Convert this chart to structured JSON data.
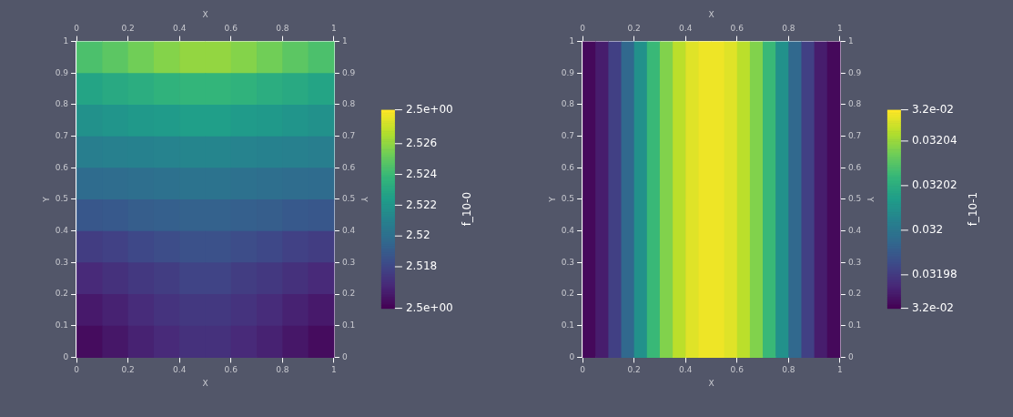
{
  "chart_data": [
    {
      "type": "heatmap",
      "xlabel": "X",
      "x2label": "X",
      "ylabel": "Y",
      "y2label": "Y",
      "clabel": "f_10-0",
      "xlim": [
        0,
        1
      ],
      "xticks": [
        0,
        0.2,
        0.4,
        0.6,
        0.8,
        1
      ],
      "x2lim": [
        0,
        1
      ],
      "x2ticks": [
        0,
        0.2,
        0.4,
        0.6,
        0.8,
        1
      ],
      "ylim": [
        0,
        1
      ],
      "yticks": [
        0,
        0.1,
        0.2,
        0.3,
        0.4,
        0.5,
        0.6,
        0.7,
        0.8,
        0.9,
        1
      ],
      "y2lim": [
        0,
        1
      ],
      "y2ticks": [
        0,
        0.1,
        0.2,
        0.3,
        0.4,
        0.5,
        0.6,
        0.7,
        0.8,
        0.9,
        1
      ],
      "x": [
        0.05,
        0.15,
        0.25,
        0.35,
        0.45,
        0.55,
        0.65,
        0.75,
        0.85,
        0.95
      ],
      "y": [
        0.95,
        0.85,
        0.75,
        0.65,
        0.55,
        0.45,
        0.35,
        0.25,
        0.15,
        0.05
      ],
      "cells": [
        [
          2.5245,
          2.5249,
          2.5254,
          2.5258,
          2.5261,
          2.5261,
          2.5258,
          2.5254,
          2.5249,
          2.5245
        ],
        [
          2.5228,
          2.5231,
          2.5233,
          2.5236,
          2.5238,
          2.5238,
          2.5236,
          2.5233,
          2.5231,
          2.5228
        ],
        [
          2.5218,
          2.522,
          2.5222,
          2.5223,
          2.5225,
          2.5225,
          2.5223,
          2.5222,
          2.522,
          2.5218
        ],
        [
          2.5208,
          2.5209,
          2.521,
          2.5211,
          2.5212,
          2.5212,
          2.5211,
          2.521,
          2.5209,
          2.5208
        ],
        [
          2.5198,
          2.5199,
          2.52,
          2.5201,
          2.5202,
          2.5202,
          2.5201,
          2.52,
          2.5199,
          2.5198
        ],
        [
          2.5188,
          2.5189,
          2.5191,
          2.5192,
          2.5193,
          2.5193,
          2.5192,
          2.5191,
          2.5189,
          2.5188
        ],
        [
          2.5176,
          2.5178,
          2.5181,
          2.5183,
          2.5185,
          2.5185,
          2.5183,
          2.5181,
          2.5178,
          2.5176
        ],
        [
          2.5168,
          2.5171,
          2.5174,
          2.5176,
          2.5179,
          2.5179,
          2.5176,
          2.5174,
          2.5171,
          2.5168
        ],
        [
          2.5162,
          2.5165,
          2.5169,
          2.5172,
          2.5174,
          2.5174,
          2.5172,
          2.5169,
          2.5165,
          2.5162
        ],
        [
          2.5157,
          2.5161,
          2.5165,
          2.5168,
          2.5171,
          2.5171,
          2.5168,
          2.5165,
          2.5161,
          2.5157
        ]
      ],
      "clim": [
        2.5153,
        2.5282
      ],
      "cticks": [
        {
          "value": 2.5153,
          "label": "2.5e+00"
        },
        2.518,
        2.52,
        2.522,
        2.524,
        2.526,
        {
          "value": 2.5282,
          "label": "2.5e+00"
        }
      ]
    },
    {
      "type": "heatmap",
      "xlabel": "X",
      "x2label": "X",
      "ylabel": "Y",
      "y2label": "Y",
      "clabel": "f_10-1",
      "xlim": [
        0,
        1
      ],
      "xticks": [
        0,
        0.2,
        0.4,
        0.6,
        0.8,
        1
      ],
      "x2lim": [
        0,
        1
      ],
      "x2ticks": [
        0,
        0.2,
        0.4,
        0.6,
        0.8,
        1
      ],
      "ylim": [
        0,
        1
      ],
      "yticks": [
        0,
        0.1,
        0.2,
        0.3,
        0.4,
        0.5,
        0.6,
        0.7,
        0.8,
        0.9,
        1
      ],
      "y2lim": [
        0,
        1
      ],
      "y2ticks": [
        0,
        0.1,
        0.2,
        0.3,
        0.4,
        0.5,
        0.6,
        0.7,
        0.8,
        0.9,
        1
      ],
      "x": [
        0.025,
        0.075,
        0.125,
        0.175,
        0.225,
        0.275,
        0.325,
        0.375,
        0.425,
        0.475,
        0.525,
        0.575,
        0.625,
        0.675,
        0.725,
        0.775,
        0.825,
        0.875,
        0.925,
        0.975
      ],
      "y": [
        0.75,
        0.25
      ],
      "cells": [
        [
          0.031967,
          0.031972,
          0.031982,
          0.031995,
          0.03201,
          0.032025,
          0.032037,
          0.032045,
          0.03205,
          0.032052,
          0.032052,
          0.03205,
          0.032045,
          0.032037,
          0.032025,
          0.03201,
          0.031995,
          0.031982,
          0.031972,
          0.031967
        ],
        [
          0.031967,
          0.031972,
          0.031982,
          0.031995,
          0.03201,
          0.032025,
          0.032037,
          0.032045,
          0.03205,
          0.032052,
          0.032052,
          0.03205,
          0.032045,
          0.032037,
          0.032025,
          0.03201,
          0.031995,
          0.031982,
          0.031972,
          0.031967
        ]
      ],
      "clim": [
        0.031965,
        0.032054
      ],
      "cticks": [
        {
          "value": 0.031965,
          "label": "3.2e-02"
        },
        0.03198,
        0.032,
        0.03202,
        0.03204,
        {
          "value": 0.032054,
          "label": "3.2e-02"
        }
      ]
    }
  ]
}
